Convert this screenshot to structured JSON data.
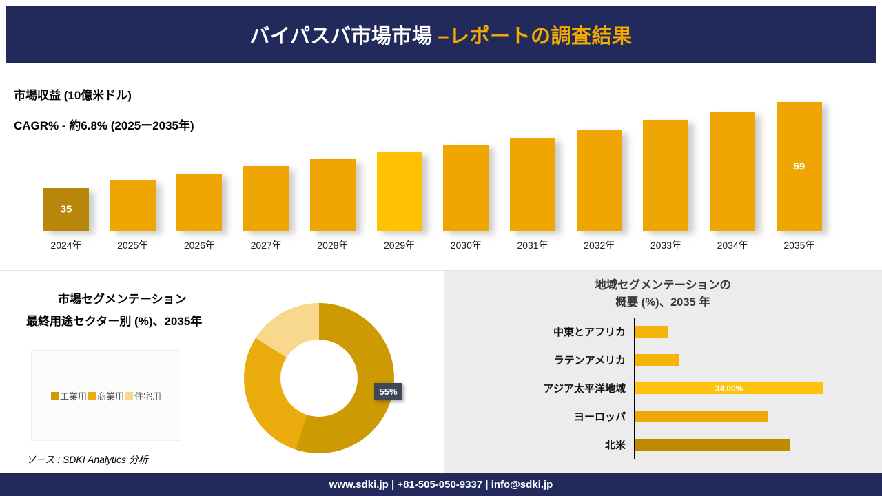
{
  "header": {
    "title_main": "バイパスバ市場市場",
    "title_accent": "–レポートの調査結果"
  },
  "revenue_section": {
    "metric_label": "市場収益 (10億米ドル)",
    "cagr_label": "CAGR% - 約6.8% (2025ー2035年)"
  },
  "segmentation": {
    "title_line1": "市場セグメンテーション",
    "title_line2": "最終用途セクター別 (%)、2035年",
    "source": "ソース : SDKI Analytics 分析"
  },
  "region": {
    "title_line1": "地域セグメンテーションの",
    "title_line2": "概要 (%)、2035 年"
  },
  "footer": {
    "text": "www.sdki.jp | +81-505-050-9337 | info@sdki.jp"
  },
  "colors": {
    "navy": "#222A5C",
    "accent_gold": "#F2A900",
    "panel_gray": "#ECECEC",
    "tag_dark": "#3F4656"
  },
  "chart_data": [
    {
      "type": "bar",
      "title": "市場収益 (10億米ドル)",
      "subtitle": "CAGR% - 約6.8% (2025ー2035年)",
      "categories": [
        "2024年",
        "2025年",
        "2026年",
        "2027年",
        "2028年",
        "2029年",
        "2030年",
        "2031年",
        "2032年",
        "2033年",
        "2034年",
        "2035年"
      ],
      "values": [
        35,
        37,
        39,
        41,
        43,
        45,
        47,
        49,
        51,
        54,
        56,
        59
      ],
      "value_labels_shown": [
        {
          "index": 0,
          "text": "35"
        },
        {
          "index": 11,
          "text": "59"
        }
      ],
      "bar_colors": [
        "#B8860B",
        "#F0A602",
        "#F0A602",
        "#F0A602",
        "#F0A602",
        "#FFC103",
        "#F0A602",
        "#F0A602",
        "#F0A602",
        "#F0A602",
        "#F0A602",
        "#F0A602"
      ],
      "xlabel": "",
      "ylabel": "市場収益 (10億米ドル)",
      "grid": false,
      "legend_position": "none"
    },
    {
      "type": "pie",
      "donut": true,
      "title": "市場セグメンテーション 最終用途セクター別 (%)、2035年",
      "labels": [
        "工業用",
        "商業用",
        "住宅用"
      ],
      "values": [
        55,
        29,
        16
      ],
      "colors": [
        "#CE9A04",
        "#E9AC0C",
        "#F8D88D"
      ],
      "value_labels_shown": [
        {
          "index": 0,
          "text": "55%"
        }
      ],
      "legend_position": "left"
    },
    {
      "type": "bar",
      "orientation": "horizontal",
      "title": "地域セグメンテーションの概要 (%)、2035 年",
      "categories": [
        "中東とアフリカ",
        "ラテンアメリカ",
        "アジア太平洋地域",
        "ヨーロッパ",
        "北米"
      ],
      "values": [
        6,
        8,
        34,
        24,
        28
      ],
      "value_labels_shown": [
        {
          "index": 2,
          "text": "34.00%"
        }
      ],
      "bar_colors": [
        "#F6B30A",
        "#F6B30A",
        "#FFC20E",
        "#EDA90A",
        "#BD8A00"
      ],
      "grid": false,
      "legend_position": "none"
    }
  ]
}
